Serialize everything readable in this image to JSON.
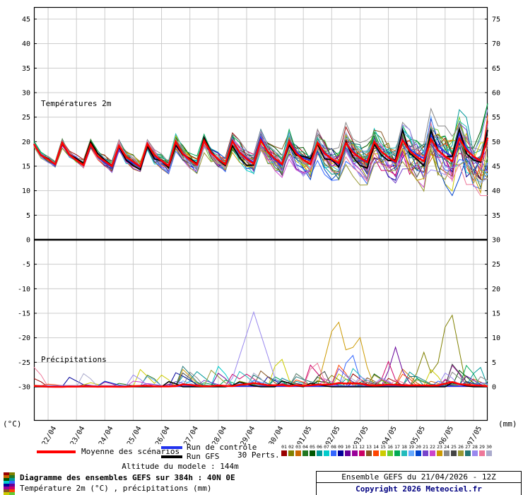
{
  "chart_data": {
    "type": "line",
    "temp_label": "Températures 2m",
    "precip_label": "Précipitations",
    "left_axis": {
      "unit": "(°C)",
      "ticks": [
        45,
        40,
        35,
        30,
        25,
        20,
        15,
        10,
        5,
        0,
        -5,
        -10,
        -15,
        -20,
        -25,
        -30
      ]
    },
    "right_axis": {
      "unit": "(mm)",
      "ticks": [
        75,
        70,
        65,
        60,
        55,
        50,
        45,
        40,
        35,
        30,
        25,
        20,
        15,
        10,
        5,
        0
      ]
    },
    "x_labels": [
      "22/04",
      "23/04",
      "24/04",
      "25/04",
      "26/04",
      "27/04",
      "28/04",
      "29/04",
      "30/04",
      "01/05",
      "02/05",
      "03/05",
      "04/05",
      "05/05",
      "06/05",
      "07/05"
    ],
    "hours_total": 384,
    "step_hours": 6,
    "mean_temp": [
      19.5,
      17.2,
      16.4,
      15.4,
      19.8,
      17.3,
      16.2,
      15.2,
      19.4,
      17.0,
      16.0,
      15.0,
      19.2,
      16.9,
      15.9,
      14.9,
      19.6,
      17.2,
      16.1,
      15.1,
      20.0,
      17.5,
      16.3,
      15.3,
      20.2,
      17.7,
      16.4,
      15.4,
      20.1,
      17.8,
      16.5,
      15.5,
      20.3,
      17.9,
      16.5,
      15.4,
      20.0,
      17.6,
      16.3,
      15.4,
      19.8,
      17.6,
      16.5,
      15.6,
      19.7,
      17.8,
      16.7,
      15.8,
      20.0,
      18.0,
      16.8,
      15.9,
      20.3,
      18.1,
      16.9,
      16.0,
      20.5,
      18.2,
      17.0,
      16.0,
      20.6,
      18.3,
      17.0,
      16.1,
      20.8
    ],
    "spread": [
      0.6,
      0.6,
      0.6,
      0.6,
      0.8,
      0.8,
      0.8,
      0.8,
      0.9,
      0.9,
      0.9,
      0.9,
      1.0,
      1.0,
      1.0,
      1.0,
      1.2,
      1.2,
      1.2,
      1.2,
      1.3,
      1.3,
      1.3,
      1.3,
      1.5,
      1.5,
      1.5,
      1.5,
      1.7,
      1.7,
      1.7,
      1.7,
      1.9,
      1.9,
      1.9,
      1.9,
      2.2,
      2.2,
      2.2,
      2.2,
      2.5,
      2.5,
      2.5,
      2.5,
      2.8,
      2.8,
      2.8,
      2.8,
      3.2,
      3.2,
      3.2,
      3.2,
      3.8,
      3.8,
      3.8,
      3.8,
      4.5,
      4.5,
      4.5,
      4.5,
      5.5,
      5.5,
      5.5,
      5.5,
      8.0
    ],
    "precip_events": [
      {
        "member": 27,
        "hour": 186,
        "width_h": 20,
        "peak_mm": 15
      },
      {
        "member": 22,
        "hour": 256,
        "width_h": 16,
        "peak_mm": 15
      },
      {
        "member": 22,
        "hour": 274,
        "width_h": 12,
        "peak_mm": 12
      },
      {
        "member": 1,
        "hour": 352,
        "width_h": 14,
        "peak_mm": 17
      },
      {
        "member": 1,
        "hour": 330,
        "width_h": 10,
        "peak_mm": 7
      },
      {
        "member": 9,
        "hour": 306,
        "width_h": 10,
        "peak_mm": 8
      },
      {
        "member": 7,
        "hour": 268,
        "width_h": 10,
        "peak_mm": 8
      },
      {
        "member": 14,
        "hour": 208,
        "width_h": 10,
        "peak_mm": 7
      },
      {
        "member": 28,
        "hour": 238,
        "width_h": 10,
        "peak_mm": 6
      },
      {
        "member": 11,
        "hour": 300,
        "width_h": 8,
        "peak_mm": 5
      },
      {
        "member": 5,
        "hour": 376,
        "width_h": 8,
        "peak_mm": 5
      },
      {
        "member": 17,
        "hour": 176,
        "width_h": 8,
        "peak_mm": 4
      },
      {
        "member": 3,
        "hour": 98,
        "width_h": 8,
        "peak_mm": 3
      },
      {
        "member": 24,
        "hour": 244,
        "width_h": 8,
        "peak_mm": 4
      }
    ],
    "member_colors": [
      "#990000",
      "#808000",
      "#cc6600",
      "#227722",
      "#005500",
      "#009999",
      "#00cccc",
      "#3366ff",
      "#000099",
      "#660099",
      "#990099",
      "#cc0066",
      "#885522",
      "#ff4400",
      "#cccc00",
      "#66cc33",
      "#00aa55",
      "#22bbbb",
      "#66aaff",
      "#0044cc",
      "#7744cc",
      "#cc44cc",
      "#cc9900",
      "#888888",
      "#444444",
      "#999933",
      "#227777",
      "#9988ee",
      "#ee7799",
      "#aaaacc"
    ],
    "pert_numbers": [
      "01",
      "02",
      "03",
      "04",
      "05",
      "06",
      "07",
      "08",
      "09",
      "10",
      "11",
      "12",
      "13",
      "14",
      "15",
      "16",
      "17",
      "18",
      "19",
      "20",
      "21",
      "22",
      "23",
      "24",
      "25",
      "26",
      "27",
      "28",
      "29",
      "30"
    ],
    "colors": {
      "mean": "#ff0000",
      "control": "#2233ee",
      "gfs": "#000000",
      "grid": "#cccccc",
      "axis": "#000000"
    }
  },
  "legend": {
    "mean_label": "Moyenne des scénarios",
    "control_label": "Run de contrôle",
    "gfs_label": "Run GFS",
    "perts_label": "30 Perts.",
    "altitude_label": "Altitude du modele : 144m"
  },
  "footer": {
    "title": "Diagramme des ensembles GEFS sur 384h : 40N 0E",
    "subtitle": "Température 2m (°C) , précipitations (mm)",
    "run_info": "Ensemble GEFS du 21/04/2026 - 12Z",
    "copyright": "Copyright 2026 Meteociel.fr"
  }
}
